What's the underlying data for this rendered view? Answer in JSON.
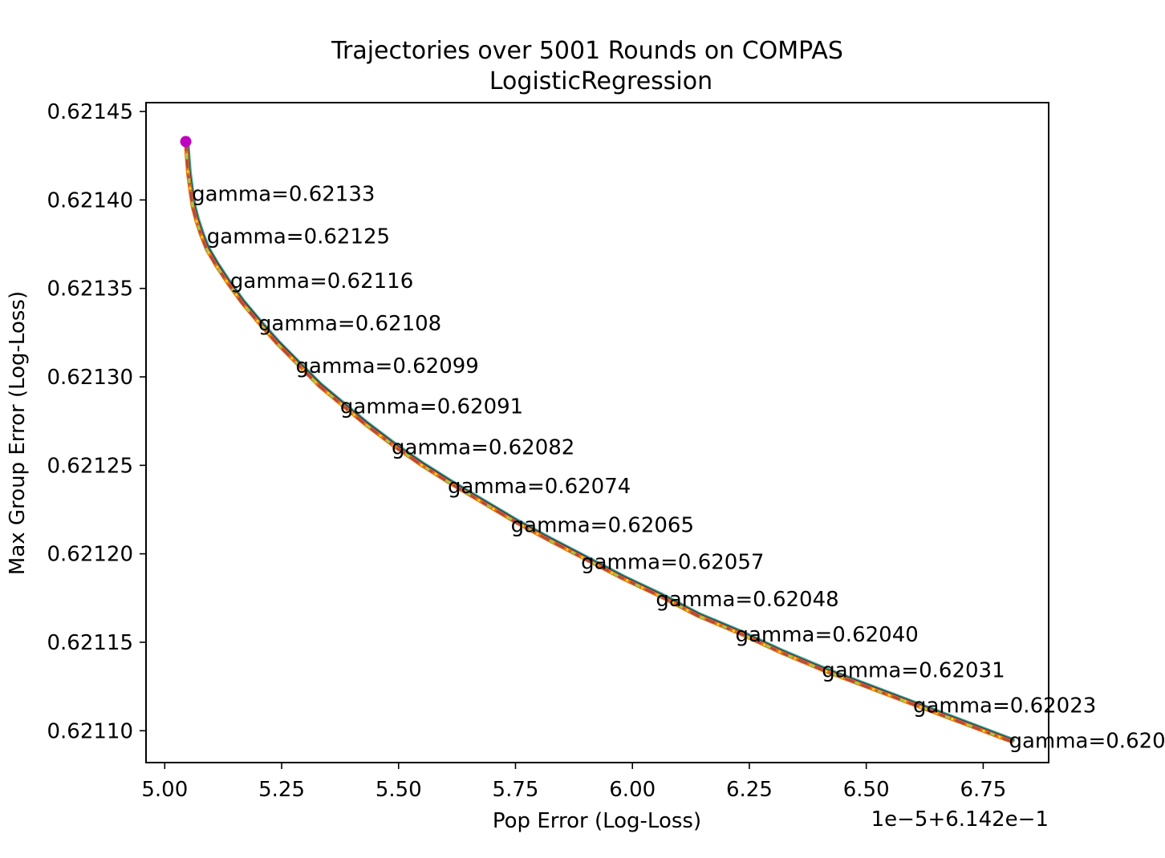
{
  "chart_data": {
    "type": "line",
    "title": "Trajectories over 5001 Rounds on COMPAS",
    "subtitle": "LogisticRegression",
    "xlabel": "Pop Error (Log-Loss)",
    "ylabel": "Max Group Error (Log-Loss)",
    "x_offset_label": "1e−5+6.142e−1",
    "xlim": [
      4.96,
      6.89
    ],
    "ylim": [
      0.621082,
      0.621455
    ],
    "x_ticks": [
      5.0,
      5.25,
      5.5,
      5.75,
      6.0,
      6.25,
      6.5,
      6.75
    ],
    "x_tick_labels": [
      "5.00",
      "5.25",
      "5.50",
      "5.75",
      "6.00",
      "6.25",
      "6.50",
      "6.75"
    ],
    "y_ticks": [
      0.6211,
      0.62115,
      0.6212,
      0.62125,
      0.6213,
      0.62135,
      0.6214,
      0.62145
    ],
    "y_tick_labels": [
      "0.62110",
      "0.62115",
      "0.62120",
      "0.62125",
      "0.62130",
      "0.62135",
      "0.62140",
      "0.62145"
    ],
    "grid": false,
    "start_point": {
      "x": 5.045,
      "y": 0.621433,
      "color": "#c000c0"
    },
    "trajectory": {
      "x": [
        5.045,
        5.047,
        5.05,
        5.055,
        5.06,
        5.068,
        5.078,
        5.09,
        5.11,
        5.135,
        5.165,
        5.2,
        5.24,
        5.285,
        5.33,
        5.38,
        5.43,
        5.49,
        5.55,
        5.61,
        5.68,
        5.75,
        5.82,
        5.9,
        5.98,
        6.06,
        6.14,
        6.23,
        6.32,
        6.41,
        6.51,
        6.61,
        6.71,
        6.81
      ],
      "y": [
        0.621433,
        0.621425,
        0.621415,
        0.621405,
        0.621396,
        0.621388,
        0.62138,
        0.621372,
        0.621363,
        0.621353,
        0.621342,
        0.621331,
        0.621319,
        0.621307,
        0.621295,
        0.621284,
        0.621273,
        0.621261,
        0.62125,
        0.62124,
        0.621229,
        0.621218,
        0.621208,
        0.621197,
        0.621186,
        0.621176,
        0.621165,
        0.621155,
        0.621144,
        0.621134,
        0.621124,
        0.621114,
        0.621104,
        0.621094
      ]
    },
    "series_colors": [
      "#2a1f5e",
      "#2f6fa5",
      "#35a58a",
      "#a0c84a",
      "#e6d82a",
      "#b04a42",
      "#e87010"
    ],
    "annotations": [
      {
        "text": "gamma=0.62133",
        "x": 5.058,
        "y": 0.621403
      },
      {
        "text": "gamma=0.62125",
        "x": 5.09,
        "y": 0.621379
      },
      {
        "text": "gamma=0.62116",
        "x": 5.14,
        "y": 0.621354
      },
      {
        "text": "gamma=0.62108",
        "x": 5.2,
        "y": 0.62133
      },
      {
        "text": "gamma=0.62099",
        "x": 5.28,
        "y": 0.621306
      },
      {
        "text": "gamma=0.62091",
        "x": 5.375,
        "y": 0.621283
      },
      {
        "text": "gamma=0.62082",
        "x": 5.485,
        "y": 0.62126
      },
      {
        "text": "gamma=0.62074",
        "x": 5.605,
        "y": 0.621238
      },
      {
        "text": "gamma=0.62065",
        "x": 5.74,
        "y": 0.621216
      },
      {
        "text": "gamma=0.62057",
        "x": 5.89,
        "y": 0.621195
      },
      {
        "text": "gamma=0.62048",
        "x": 6.05,
        "y": 0.621174
      },
      {
        "text": "gamma=0.62040",
        "x": 6.22,
        "y": 0.621154
      },
      {
        "text": "gamma=0.62031",
        "x": 6.405,
        "y": 0.621134
      },
      {
        "text": "gamma=0.62023",
        "x": 6.6,
        "y": 0.621114
      },
      {
        "text": "gamma=0.620",
        "x": 6.805,
        "y": 0.621094
      }
    ]
  }
}
